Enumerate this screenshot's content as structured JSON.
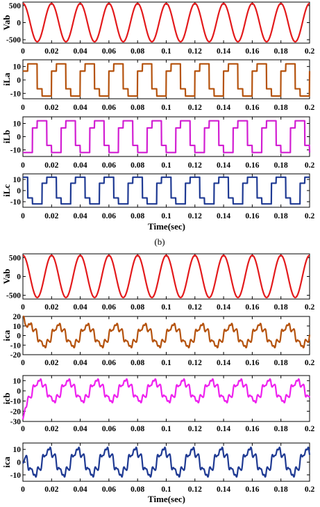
{
  "figure": {
    "caption_b": "(b)"
  },
  "chart_data": [
    {
      "type": "line",
      "ylabel": "Vab",
      "xlabel": "",
      "xlim": [
        0,
        0.2
      ],
      "ylim": [
        -600,
        600
      ],
      "yticks": [
        "500",
        "0",
        "-500"
      ],
      "xticks": [
        "0",
        "0.02",
        "0.04",
        "0.06",
        "0.08",
        "0.1",
        "0.12",
        "0.14",
        "0.16",
        "0.18",
        "0.2"
      ],
      "color": "#e31a1c",
      "series": [
        {
          "waveform": "sine",
          "amplitude": 560,
          "frequency_hz": 50,
          "phase_deg": 90
        }
      ]
    },
    {
      "type": "line",
      "ylabel": "iLa",
      "xlabel": "",
      "xlim": [
        0,
        0.2
      ],
      "ylim": [
        -14,
        15
      ],
      "yticks": [
        "10",
        "0",
        "-10"
      ],
      "xticks": [
        "0",
        "0.02",
        "0.04",
        "0.06",
        "0.08",
        "0.1",
        "0.12",
        "0.14",
        "0.16",
        "0.18",
        "0.2"
      ],
      "color": "#b5530e",
      "series": [
        {
          "waveform": "six-step",
          "amplitude": 12,
          "frequency_hz": 50,
          "phase_deg": 0
        }
      ]
    },
    {
      "type": "line",
      "ylabel": "iLb",
      "xlabel": "",
      "xlim": [
        0,
        0.2
      ],
      "ylim": [
        -15,
        15
      ],
      "yticks": [
        "10",
        "0",
        "-10"
      ],
      "xticks": [
        "0",
        "0.02",
        "0.04",
        "0.06",
        "0.08",
        "0.1",
        "0.12",
        "0.14",
        "0.16",
        "0.18",
        "0.2"
      ],
      "color": "#d21ed2",
      "series": [
        {
          "waveform": "six-step",
          "amplitude": 12,
          "frequency_hz": 50,
          "phase_deg": -120
        }
      ]
    },
    {
      "type": "line",
      "ylabel": "iLc",
      "xlabel": "Time(sec)",
      "xlim": [
        0,
        0.2
      ],
      "ylim": [
        -15,
        15
      ],
      "yticks": [
        "10",
        "0",
        "-10"
      ],
      "xticks": [
        "0",
        "0.02",
        "0.04",
        "0.06",
        "0.08",
        "0.1",
        "0.12",
        "0.14",
        "0.16",
        "0.18",
        "0.2"
      ],
      "color": "#1f3a93",
      "series": [
        {
          "waveform": "six-step",
          "amplitude": 12,
          "frequency_hz": 50,
          "phase_deg": 120
        }
      ]
    },
    {
      "type": "line",
      "ylabel": "Vab",
      "xlabel": "",
      "xlim": [
        0,
        0.2
      ],
      "ylim": [
        -600,
        600
      ],
      "yticks": [
        "500",
        "0",
        "-500"
      ],
      "xticks": [
        "0",
        "0.02",
        "0.04",
        "0.06",
        "0.08",
        "0.1",
        "0.12",
        "0.14",
        "0.16",
        "0.18",
        "0.2"
      ],
      "color": "#e31a1c",
      "series": [
        {
          "waveform": "sine",
          "amplitude": 560,
          "frequency_hz": 50,
          "phase_deg": 90
        }
      ]
    },
    {
      "type": "line",
      "ylabel": "ica",
      "xlabel": "",
      "xlim": [
        0,
        0.2
      ],
      "ylim": [
        -20,
        20
      ],
      "yticks": [
        "20",
        "10",
        "0",
        "-10",
        "-20"
      ],
      "xticks": [
        "0",
        "0.02",
        "0.04",
        "0.06",
        "0.08",
        "0.1",
        "0.12",
        "0.14",
        "0.16",
        "0.18",
        "0.2"
      ],
      "color": "#b5530e",
      "series": [
        {
          "waveform": "harmonic",
          "amplitude": 12,
          "frequency_hz": 50,
          "phase_deg": 0,
          "start_value": 22
        }
      ]
    },
    {
      "type": "line",
      "ylabel": "icb",
      "xlabel": "",
      "xlim": [
        0,
        0.2
      ],
      "ylim": [
        -30,
        15
      ],
      "yticks": [
        "10",
        "0",
        "-10",
        "-20",
        "-30"
      ],
      "xticks": [
        "0",
        "0.02",
        "0.04",
        "0.06",
        "0.08",
        "0.1",
        "0.12",
        "0.14",
        "0.16",
        "0.18",
        "0.2"
      ],
      "color": "#ee22ee",
      "series": [
        {
          "waveform": "harmonic",
          "amplitude": 11,
          "frequency_hz": 50,
          "phase_deg": -120,
          "start_value": -28
        }
      ]
    },
    {
      "type": "line",
      "ylabel": "ica",
      "xlabel": "Time(sec)",
      "xlim": [
        0,
        0.2
      ],
      "ylim": [
        -15,
        15
      ],
      "yticks": [
        "10",
        "0",
        "-10"
      ],
      "xticks": [
        "0",
        "0.02",
        "0.04",
        "0.06",
        "0.08",
        "0.1",
        "0.12",
        "0.14",
        "0.16",
        "0.18",
        "0.2"
      ],
      "color": "#1f3a93",
      "series": [
        {
          "waveform": "harmonic",
          "amplitude": 11,
          "frequency_hz": 50,
          "phase_deg": 120,
          "start_value": 0
        }
      ]
    }
  ]
}
